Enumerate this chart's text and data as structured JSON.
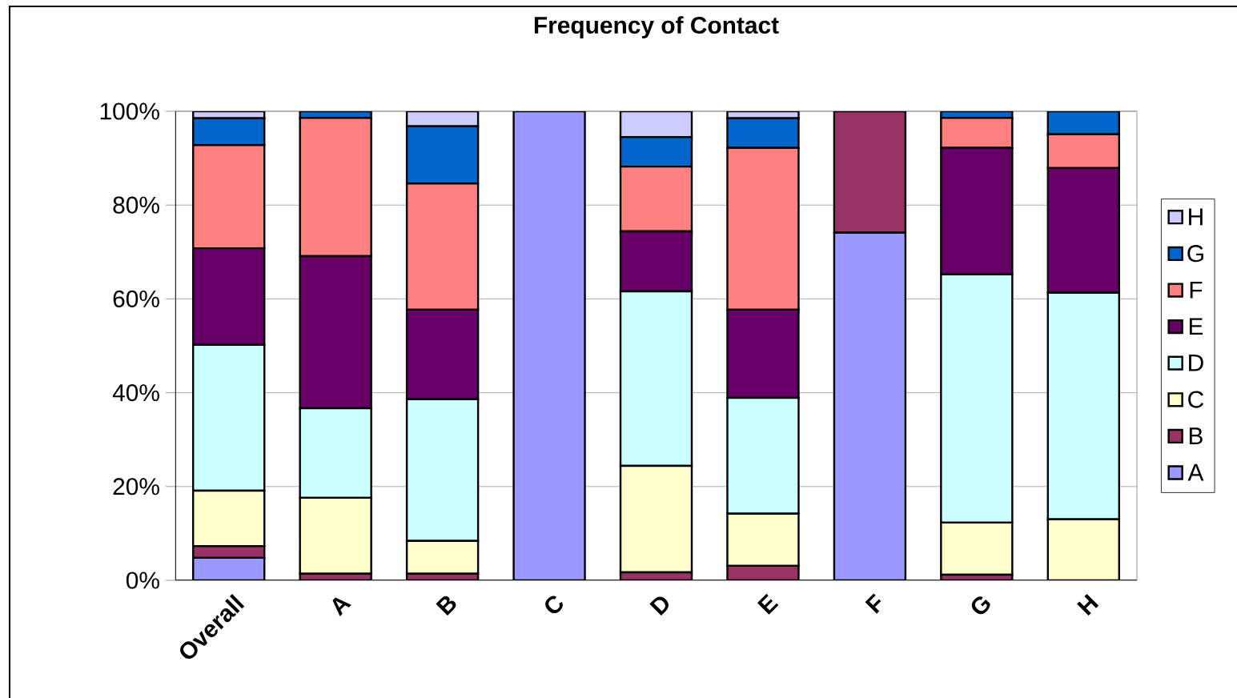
{
  "chart_data": {
    "type": "bar",
    "title": "Frequency of Contact",
    "stacked": true,
    "grid": "y",
    "legend": "right",
    "categories": [
      "Overall",
      "A",
      "B",
      "C",
      "D",
      "E",
      "F",
      "G",
      "H"
    ],
    "ylim": [
      0,
      100
    ],
    "yticks": [
      {
        "value": 0,
        "label": "0%"
      },
      {
        "value": 20,
        "label": "20%"
      },
      {
        "value": 40,
        "label": "40%"
      },
      {
        "value": 60,
        "label": "60%"
      },
      {
        "value": 80,
        "label": "80%"
      },
      {
        "value": 100,
        "label": "100%"
      }
    ],
    "series": [
      {
        "name": "A",
        "color": "#9999ff",
        "values": [
          4.8,
          0,
          0,
          100,
          0,
          0,
          74.1,
          0,
          0
        ]
      },
      {
        "name": "B",
        "color": "#993366",
        "values": [
          2.5,
          1.4,
          1.4,
          0,
          1.7,
          3.1,
          25.9,
          1.2,
          0
        ]
      },
      {
        "name": "C",
        "color": "#ffffcc",
        "values": [
          11.8,
          16.2,
          7.0,
          0,
          22.7,
          11.1,
          0,
          11.1,
          13.0
        ]
      },
      {
        "name": "D",
        "color": "#ccffff",
        "values": [
          31.1,
          19.1,
          30.2,
          0,
          37.2,
          24.7,
          0,
          52.9,
          48.3
        ]
      },
      {
        "name": "E",
        "color": "#660066",
        "values": [
          20.6,
          32.4,
          19.1,
          0,
          12.8,
          18.8,
          0,
          27.0,
          26.6
        ]
      },
      {
        "name": "F",
        "color": "#ff8080",
        "values": [
          22.0,
          29.5,
          26.9,
          0,
          13.8,
          34.5,
          0,
          6.4,
          7.2
        ]
      },
      {
        "name": "G",
        "color": "#0066cc",
        "values": [
          5.7,
          1.4,
          12.2,
          0,
          6.3,
          6.3,
          0,
          1.4,
          4.9
        ]
      },
      {
        "name": "H",
        "color": "#ccccff",
        "values": [
          1.5,
          0,
          3.2,
          0,
          5.5,
          1.5,
          0,
          0,
          0
        ]
      }
    ]
  }
}
